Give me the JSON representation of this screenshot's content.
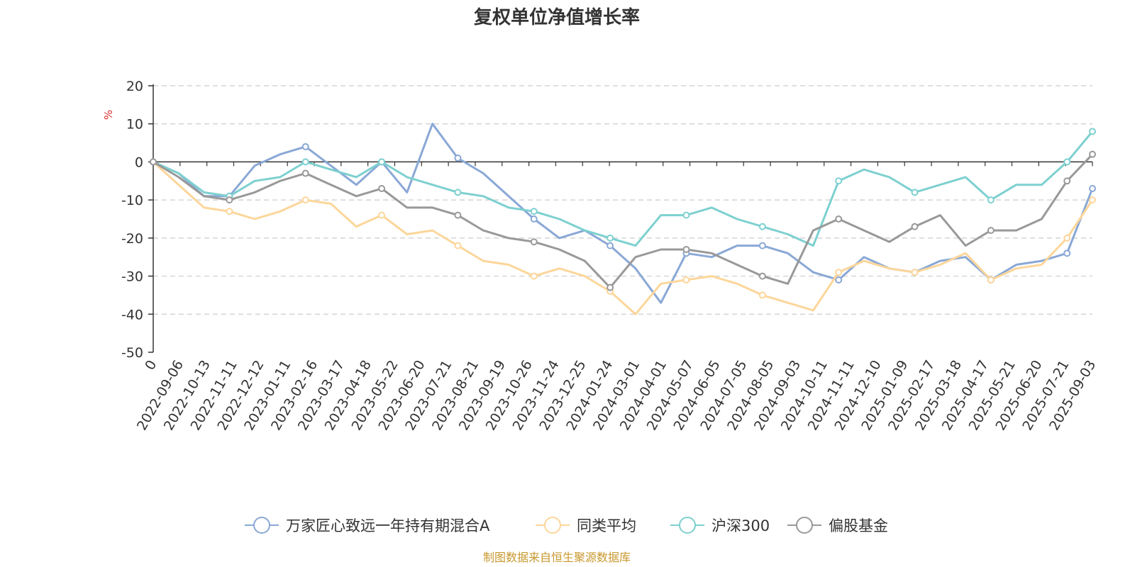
{
  "chart_data": {
    "type": "line",
    "title": "复权单位净值增长率",
    "ylabel": "%",
    "ylim": [
      -50,
      20
    ],
    "yticks": [
      20,
      10,
      0,
      -10,
      -20,
      -30,
      -40,
      -50
    ],
    "grid": true,
    "legend_position": "bottom",
    "x_ticks": [
      "0",
      "2022-09-06",
      "2022-10-13",
      "2022-11-11",
      "2022-12-12",
      "2023-01-11",
      "2023-02-16",
      "2023-03-17",
      "2023-04-18",
      "2023-05-22",
      "2023-06-20",
      "2023-07-21",
      "2023-08-21",
      "2023-09-19",
      "2023-10-26",
      "2023-11-24",
      "2023-12-25",
      "2024-01-24",
      "2024-03-01",
      "2024-04-01",
      "2024-05-07",
      "2024-06-05",
      "2024-07-05",
      "2024-08-05",
      "2024-09-03",
      "2024-10-11",
      "2024-11-11",
      "2024-12-10",
      "2025-01-09",
      "2025-02-17",
      "2025-03-18",
      "2025-04-17",
      "2025-05-21",
      "2025-06-20",
      "2025-07-21",
      "2025-09-03"
    ],
    "series": [
      {
        "name": "万家匠心致远一年持有期混合A",
        "color": "#8aa8d6",
        "values": [
          0,
          -3,
          -9,
          -9,
          -1,
          2,
          4,
          -1,
          -6,
          0,
          -8,
          10,
          1,
          -3,
          -9,
          -15,
          -20,
          -18,
          -22,
          -28,
          -37,
          -24,
          -25,
          -22,
          -22,
          -24,
          -29,
          -31,
          -25,
          -28,
          -29,
          -26,
          -25,
          -31,
          -27,
          -26,
          -24,
          -7
        ]
      },
      {
        "name": "同类平均",
        "color": "#fcd69a",
        "values": [
          0,
          -6,
          -12,
          -13,
          -15,
          -13,
          -10,
          -11,
          -17,
          -14,
          -19,
          -18,
          -22,
          -26,
          -27,
          -30,
          -28,
          -30,
          -34,
          -40,
          -32,
          -31,
          -30,
          -32,
          -35,
          -37,
          -39,
          -29,
          -26,
          -28,
          -29,
          -27,
          -24,
          -31,
          -28,
          -27,
          -20,
          -10
        ]
      },
      {
        "name": "沪深300",
        "color": "#7ed0d0",
        "values": [
          0,
          -3,
          -8,
          -9,
          -5,
          -4,
          0,
          -2,
          -4,
          0,
          -4,
          -6,
          -8,
          -9,
          -12,
          -13,
          -15,
          -18,
          -20,
          -22,
          -14,
          -14,
          -12,
          -15,
          -17,
          -19,
          -22,
          -5,
          -2,
          -4,
          -8,
          -6,
          -4,
          -10,
          -6,
          -6,
          0,
          8
        ]
      },
      {
        "name": "偏股基金",
        "color": "#999999",
        "values": [
          0,
          -4,
          -9,
          -10,
          -8,
          -5,
          -3,
          -6,
          -9,
          -7,
          -12,
          -12,
          -14,
          -18,
          -20,
          -21,
          -23,
          -26,
          -33,
          -25,
          -23,
          -23,
          -24,
          -27,
          -30,
          -32,
          -18,
          -15,
          -18,
          -21,
          -17,
          -14,
          -22,
          -18,
          -18,
          -15,
          -5,
          2
        ]
      }
    ]
  },
  "source_text": "制图数据来自恒生聚源数据库",
  "colors": {
    "axis": "#333333",
    "grid": "#cccccc",
    "unit": "#e03030",
    "source": "#c8982e"
  }
}
